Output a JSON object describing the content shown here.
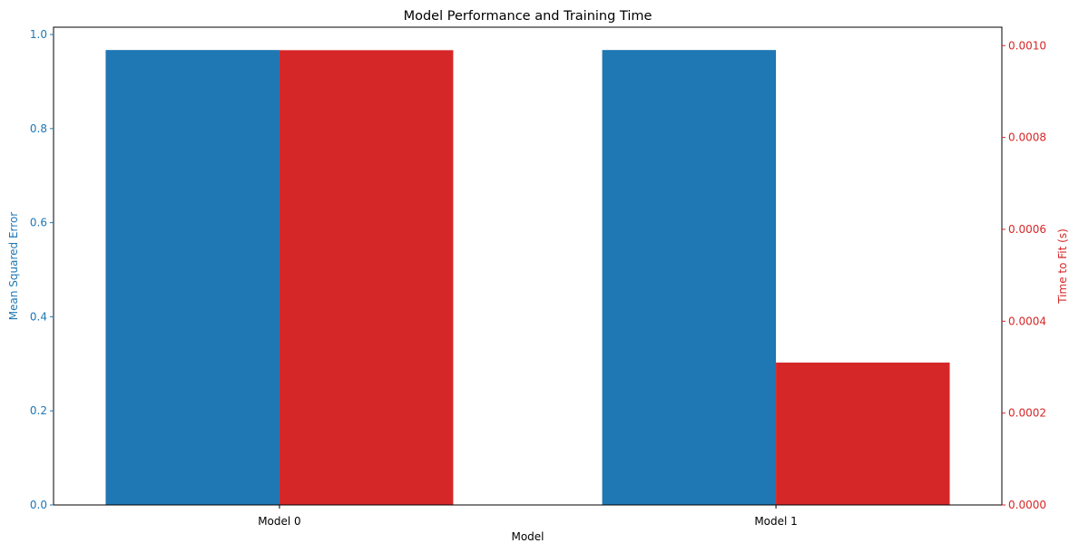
{
  "chart_data": {
    "type": "bar",
    "title": "Model Performance and Training Time",
    "xlabel": "Model",
    "categories": [
      "Model 0",
      "Model 1"
    ],
    "left_axis": {
      "label": "Mean Squared Error",
      "color": "#1f77b4",
      "ylim": [
        0,
        1.0155
      ],
      "ticks": [
        0.0,
        0.2,
        0.4,
        0.6,
        0.8,
        1.0
      ],
      "tick_labels": [
        "0.0",
        "0.2",
        "0.4",
        "0.6",
        "0.8",
        "1.0"
      ]
    },
    "right_axis": {
      "label": "Time to Fit (s)",
      "color": "#d62728",
      "ylim": [
        0,
        0.00104
      ],
      "ticks": [
        0.0,
        0.0002,
        0.0004,
        0.0006,
        0.0008,
        0.001
      ],
      "tick_labels": [
        "0.0000",
        "0.0002",
        "0.0004",
        "0.0006",
        "0.0008",
        "0.0010"
      ]
    },
    "series": [
      {
        "axis": "left",
        "color": "#1f77b4",
        "values": [
          0.967,
          0.967
        ]
      },
      {
        "axis": "right",
        "color": "#d62728",
        "values": [
          0.00099,
          0.00031
        ]
      }
    ],
    "grid": false,
    "legend": "none"
  }
}
